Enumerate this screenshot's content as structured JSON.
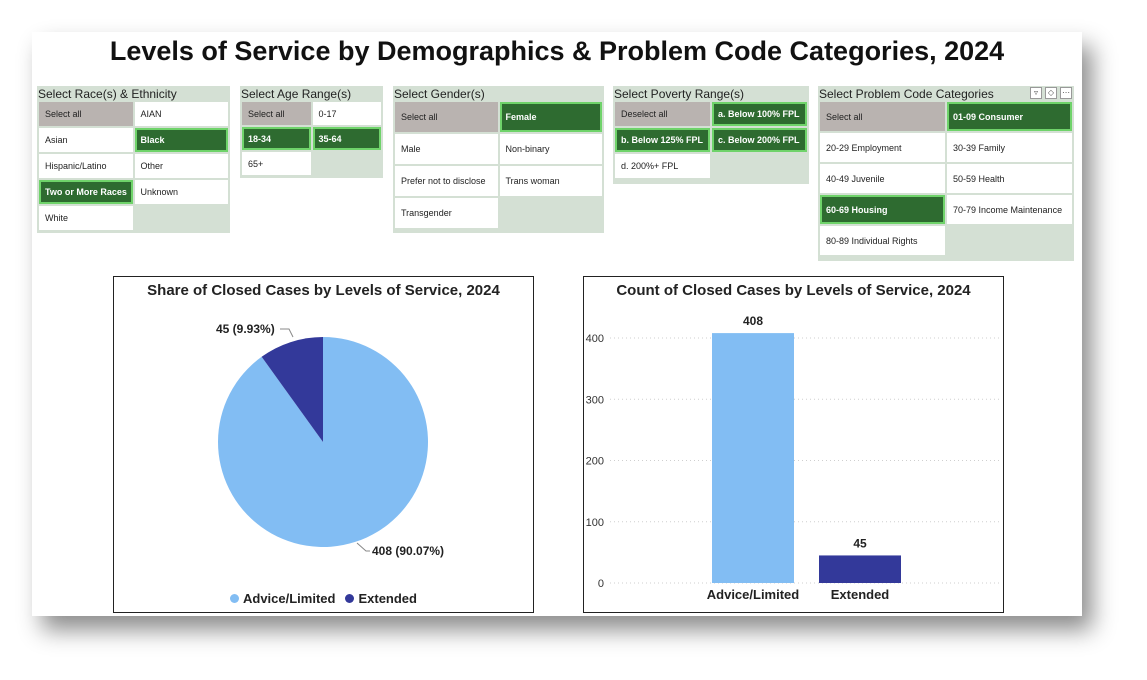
{
  "title": "Levels of Service by Demographics & Problem Code Categories, 2024",
  "slicers": {
    "race": {
      "label": "Select Race(s) & Ethnicity",
      "items": [
        "Select all",
        "AIAN",
        "Asian",
        "Black",
        "Hispanic/Latino",
        "Other",
        "Two or More Races",
        "Unknown",
        "White"
      ],
      "selected": [
        "Black",
        "Two or More Races"
      ]
    },
    "age": {
      "label": "Select Age Range(s)",
      "items": [
        "Select all",
        "0-17",
        "18-34",
        "35-64",
        "65+"
      ],
      "selected": [
        "18-34",
        "35-64"
      ]
    },
    "gender": {
      "label": "Select Gender(s)",
      "items": [
        "Select all",
        "Female",
        "Male",
        "Non-binary",
        "Prefer not to disclose",
        "Trans woman",
        "Transgender"
      ],
      "selected": [
        "Female"
      ]
    },
    "poverty": {
      "label": "Select Poverty Range(s)",
      "items": [
        "Deselect all",
        "a. Below 100% FPL",
        "b. Below 125% FPL",
        "c. Below 200% FPL",
        "d. 200%+ FPL"
      ],
      "selected": [
        "a. Below 100% FPL",
        "b. Below 125% FPL",
        "c. Below 200% FPL"
      ]
    },
    "problem": {
      "label": "Select Problem Code Categories",
      "items": [
        "Select all",
        "01-09 Consumer",
        "20-29 Employment",
        "30-39 Family",
        "40-49 Juvenile",
        "50-59 Health",
        "60-69 Housing",
        "70-79 Income Maintenance",
        "80-89 Individual Rights"
      ],
      "selected": [
        "01-09 Consumer",
        "60-69 Housing"
      ]
    }
  },
  "colors": {
    "advice": "#82bdf3",
    "extended": "#33399a",
    "selected": "#2e6b30"
  },
  "icons": [
    "filter-icon",
    "focus-mode-icon",
    "more-options-icon"
  ],
  "chart_data": [
    {
      "type": "pie",
      "title": "Share of Closed Cases by Levels of Service, 2024",
      "categories": [
        "Advice/Limited",
        "Extended"
      ],
      "values": [
        408,
        45
      ],
      "data_labels": [
        "408 (90.07%)",
        "45 (9.93%)"
      ],
      "legend": "bottom-center"
    },
    {
      "type": "bar",
      "title": "Count of Closed Cases by Levels of Service, 2024",
      "categories": [
        "Advice/Limited",
        "Extended"
      ],
      "values": [
        408,
        45
      ],
      "data_labels": [
        "408",
        "45"
      ],
      "ylim": [
        0,
        420
      ],
      "yticks": [
        0,
        100,
        200,
        300,
        400
      ],
      "grid": true
    }
  ]
}
